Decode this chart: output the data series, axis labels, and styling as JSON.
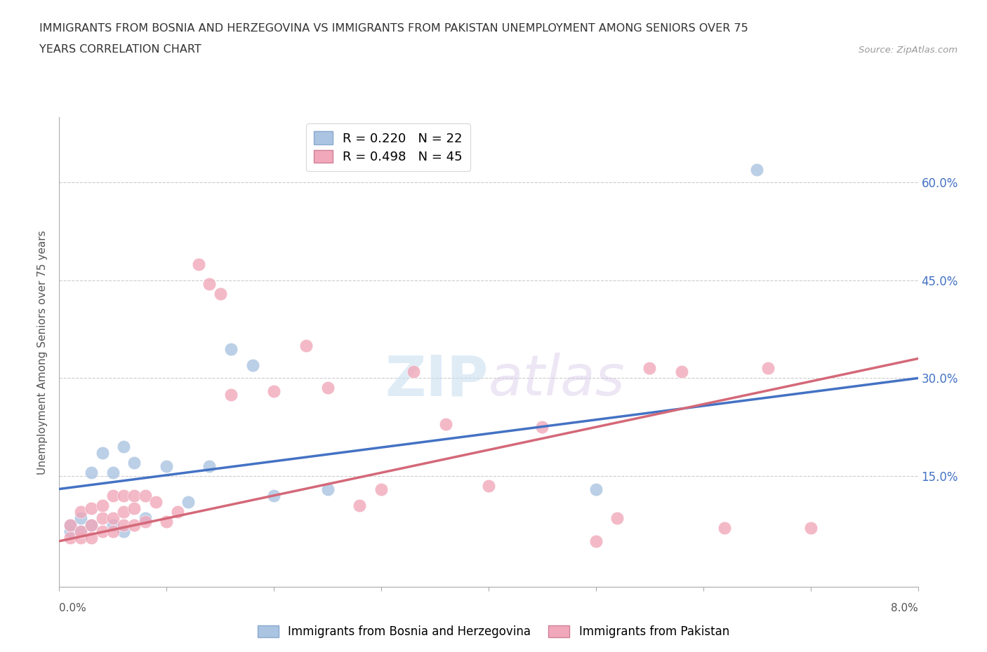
{
  "title_line1": "IMMIGRANTS FROM BOSNIA AND HERZEGOVINA VS IMMIGRANTS FROM PAKISTAN UNEMPLOYMENT AMONG SENIORS OVER 75",
  "title_line2": "YEARS CORRELATION CHART",
  "source": "Source: ZipAtlas.com",
  "ylabel": "Unemployment Among Seniors over 75 years",
  "yticks": [
    0.0,
    0.15,
    0.3,
    0.45,
    0.6
  ],
  "ytick_labels": [
    "",
    "15.0%",
    "30.0%",
    "45.0%",
    "60.0%"
  ],
  "xlim": [
    0.0,
    0.08
  ],
  "ylim": [
    -0.02,
    0.7
  ],
  "blue_R": 0.22,
  "blue_N": 22,
  "pink_R": 0.498,
  "pink_N": 45,
  "blue_label": "Immigrants from Bosnia and Herzegovina",
  "pink_label": "Immigrants from Pakistan",
  "blue_color": "#aac4e2",
  "pink_color": "#f0a8ba",
  "blue_line_color": "#4472c4",
  "pink_line_color": "#d46878",
  "blue_line_y0": 0.13,
  "blue_line_y1": 0.3,
  "pink_line_y0": 0.05,
  "pink_line_y1": 0.33,
  "background_color": "#ffffff",
  "blue_x": [
    0.001,
    0.001,
    0.002,
    0.002,
    0.003,
    0.003,
    0.004,
    0.005,
    0.005,
    0.006,
    0.006,
    0.007,
    0.008,
    0.01,
    0.012,
    0.014,
    0.016,
    0.018,
    0.02,
    0.025,
    0.05,
    0.065
  ],
  "blue_y": [
    0.065,
    0.075,
    0.065,
    0.085,
    0.075,
    0.155,
    0.185,
    0.075,
    0.155,
    0.065,
    0.195,
    0.17,
    0.085,
    0.165,
    0.11,
    0.165,
    0.345,
    0.32,
    0.12,
    0.13,
    0.13,
    0.62
  ],
  "pink_x": [
    0.001,
    0.001,
    0.002,
    0.002,
    0.002,
    0.003,
    0.003,
    0.003,
    0.004,
    0.004,
    0.004,
    0.005,
    0.005,
    0.005,
    0.006,
    0.006,
    0.006,
    0.007,
    0.007,
    0.007,
    0.008,
    0.008,
    0.009,
    0.01,
    0.011,
    0.013,
    0.014,
    0.015,
    0.016,
    0.02,
    0.023,
    0.025,
    0.028,
    0.03,
    0.033,
    0.036,
    0.04,
    0.045,
    0.05,
    0.052,
    0.055,
    0.058,
    0.062,
    0.066,
    0.07
  ],
  "pink_y": [
    0.055,
    0.075,
    0.055,
    0.065,
    0.095,
    0.055,
    0.075,
    0.1,
    0.065,
    0.085,
    0.105,
    0.065,
    0.085,
    0.12,
    0.075,
    0.095,
    0.12,
    0.075,
    0.1,
    0.12,
    0.08,
    0.12,
    0.11,
    0.08,
    0.095,
    0.475,
    0.445,
    0.43,
    0.275,
    0.28,
    0.35,
    0.285,
    0.105,
    0.13,
    0.31,
    0.23,
    0.135,
    0.225,
    0.05,
    0.085,
    0.315,
    0.31,
    0.07,
    0.315,
    0.07
  ]
}
